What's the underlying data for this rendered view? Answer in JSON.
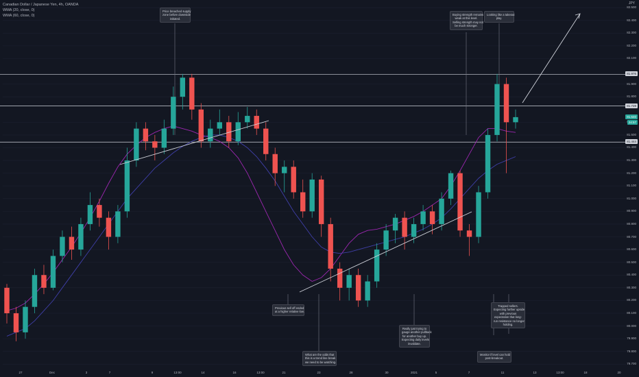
{
  "header": {
    "title": "Canadian Dollar / Japanese Yen, 4h, OANDA",
    "indicators": [
      "WMA (20, close, 0)",
      "WMA (60, close, 0)"
    ],
    "currency": "JPY"
  },
  "colors": {
    "background": "#131722",
    "up": "#26a69a",
    "down": "#ef5350",
    "wma20": "#9c27b0",
    "wma60": "#3f3fa8",
    "line": "#d1d4dc",
    "price_tag": "#26a69a"
  },
  "price_tags": [
    {
      "label": "81.976",
      "value": 81.976,
      "kind": "line"
    },
    {
      "label": "81.728",
      "value": 81.728,
      "kind": "line"
    },
    {
      "label": "81.640",
      "value": 81.64,
      "kind": "price"
    },
    {
      "label": "24:57",
      "value": 81.597,
      "kind": "countdown"
    },
    {
      "label": "81.444",
      "value": 81.444,
      "kind": "line"
    }
  ],
  "annotations": [
    {
      "id": "supply",
      "lines": [
        "Price breached supply",
        "zone before downside",
        "initiated."
      ]
    },
    {
      "id": "buying",
      "lines": [
        "Buying strength remains",
        "weak at this level.",
        "Selling strength may not",
        "be much stronger."
      ]
    },
    {
      "id": "takeout",
      "lines": [
        "Looking like a takeout",
        "play."
      ]
    },
    {
      "id": "sell-off",
      "lines": [
        "Previous sell off ended",
        "at a higher relative low."
      ]
    },
    {
      "id": "trapped",
      "lines": [
        "Trapped sellers.",
        "Expecting further upside",
        "with previous",
        "expectation that long-",
        "run resistance no longer",
        "holding."
      ]
    },
    {
      "id": "pullback",
      "lines": [
        "Really just trying to",
        "gauge another pullback",
        "for another buy up.",
        "Expecting daily levels",
        "invalidate."
      ]
    },
    {
      "id": "odds",
      "lines": [
        "What are the odds that",
        "this is a trend line break",
        "we need to be watching."
      ]
    },
    {
      "id": "monitor",
      "lines": [
        "Monitor if level can hold",
        "post-breakout."
      ]
    }
  ],
  "chart_data": {
    "type": "candlestick",
    "title": "Canadian Dollar / Japanese Yen, 4h, OANDA",
    "ylim": [
      79.68,
      82.56
    ],
    "y_ticks": [
      "82.500",
      "82.400",
      "82.300",
      "82.200",
      "82.100",
      "81.900",
      "81.800",
      "81.600",
      "81.500",
      "81.400",
      "81.300",
      "81.200",
      "81.100",
      "81.000",
      "80.900",
      "80.800",
      "80.700",
      "80.600",
      "80.500",
      "80.400",
      "80.300",
      "80.200",
      "80.100",
      "80.000",
      "79.900",
      "79.800",
      "79.700"
    ],
    "x_ticks": [
      "27",
      "Dec",
      "3",
      "7",
      "9",
      "13:00",
      "14",
      "16",
      "13:00",
      "21",
      "23",
      "28",
      "30",
      "2021",
      "5",
      "7",
      "11",
      "13",
      "13:00",
      "18",
      "20"
    ],
    "horizontal_levels": [
      81.976,
      81.728,
      81.444
    ],
    "series": [
      {
        "name": "WMA (20, close, 0)",
        "values": [
          80.12,
          80.14,
          80.18,
          80.25,
          80.33,
          80.42,
          80.52,
          80.62,
          80.73,
          80.85,
          80.98,
          81.12,
          81.25,
          81.35,
          81.42,
          81.48,
          81.52,
          81.55,
          81.57,
          81.55,
          81.53,
          81.5,
          81.48,
          81.45,
          81.4,
          81.32,
          81.2,
          81.05,
          80.9,
          80.75,
          80.6,
          80.48,
          80.4,
          80.35,
          80.38,
          80.45,
          80.55,
          80.65,
          80.72,
          80.75,
          80.76,
          80.78,
          80.8,
          80.83,
          80.86,
          80.9,
          80.95,
          81.0,
          81.1,
          81.22,
          81.35,
          81.48,
          81.55,
          81.55,
          81.53,
          81.52
        ]
      },
      {
        "name": "WMA (60, close, 0)",
        "values": [
          79.92,
          79.95,
          79.98,
          80.04,
          80.12,
          80.2,
          80.3,
          80.4,
          80.5,
          80.6,
          80.7,
          80.8,
          80.9,
          81.0,
          81.08,
          81.16,
          81.24,
          81.3,
          81.36,
          81.41,
          81.45,
          81.48,
          81.5,
          81.5,
          81.48,
          81.45,
          81.4,
          81.33,
          81.24,
          81.14,
          81.02,
          80.9,
          80.8,
          80.7,
          80.62,
          80.58,
          80.57,
          80.58,
          80.6,
          80.62,
          80.64,
          80.66,
          80.68,
          80.7,
          80.73,
          80.76,
          80.8,
          80.85,
          80.92,
          81.0,
          81.08,
          81.16,
          81.22,
          81.27,
          81.3,
          81.33
        ]
      }
    ],
    "candles": [
      [
        80.3,
        80.1,
        80.33,
        80.02
      ],
      [
        80.1,
        79.95,
        80.15,
        79.88
      ],
      [
        79.95,
        80.15,
        80.2,
        79.9
      ],
      [
        80.15,
        80.4,
        80.45,
        80.1
      ],
      [
        80.4,
        80.3,
        80.48,
        80.25
      ],
      [
        80.3,
        80.55,
        80.6,
        80.28
      ],
      [
        80.55,
        80.7,
        80.75,
        80.5
      ],
      [
        80.7,
        80.6,
        80.78,
        80.52
      ],
      [
        80.6,
        80.8,
        80.85,
        80.55
      ],
      [
        80.8,
        80.95,
        81.05,
        80.75
      ],
      [
        80.95,
        80.85,
        81.0,
        80.78
      ],
      [
        80.85,
        80.7,
        80.9,
        80.6
      ],
      [
        80.7,
        80.9,
        80.95,
        80.65
      ],
      [
        80.9,
        81.3,
        81.4,
        80.85
      ],
      [
        81.3,
        81.55,
        81.6,
        81.25
      ],
      [
        81.55,
        81.45,
        81.6,
        81.38
      ],
      [
        81.45,
        81.4,
        81.5,
        81.3
      ],
      [
        81.4,
        81.55,
        81.62,
        81.35
      ],
      [
        81.55,
        81.8,
        81.88,
        81.5
      ],
      [
        81.8,
        81.95,
        81.98,
        81.7
      ],
      [
        81.95,
        81.7,
        81.98,
        81.62
      ],
      [
        81.7,
        81.45,
        81.75,
        81.4
      ],
      [
        81.45,
        81.55,
        81.62,
        81.4
      ],
      [
        81.55,
        81.6,
        81.7,
        81.5
      ],
      [
        81.6,
        81.45,
        81.65,
        81.4
      ],
      [
        81.45,
        81.6,
        81.68,
        81.42
      ],
      [
        81.6,
        81.65,
        81.72,
        81.55
      ],
      [
        81.65,
        81.55,
        81.7,
        81.5
      ],
      [
        81.55,
        81.35,
        81.6,
        81.3
      ],
      [
        81.35,
        81.2,
        81.4,
        81.1
      ],
      [
        81.2,
        81.25,
        81.3,
        81.05
      ],
      [
        81.25,
        81.05,
        81.3,
        81.0
      ],
      [
        81.05,
        80.9,
        81.15,
        80.85
      ],
      [
        80.9,
        81.15,
        81.2,
        80.85
      ],
      [
        81.15,
        80.8,
        81.18,
        80.7
      ],
      [
        80.8,
        80.45,
        80.85,
        80.35
      ],
      [
        80.45,
        80.3,
        80.5,
        80.2
      ],
      [
        80.3,
        80.4,
        80.45,
        80.2
      ],
      [
        80.4,
        80.2,
        80.45,
        80.15
      ],
      [
        80.2,
        80.35,
        80.4,
        80.15
      ],
      [
        80.35,
        80.6,
        80.65,
        80.3
      ],
      [
        80.6,
        80.75,
        80.8,
        80.55
      ],
      [
        80.75,
        80.85,
        80.88,
        80.65
      ],
      [
        80.85,
        80.7,
        80.9,
        80.6
      ],
      [
        80.7,
        80.8,
        80.85,
        80.65
      ],
      [
        80.8,
        80.9,
        80.95,
        80.75
      ],
      [
        80.9,
        80.8,
        80.95,
        80.72
      ],
      [
        80.8,
        81.0,
        81.05,
        80.75
      ],
      [
        81.0,
        81.2,
        81.22,
        80.95
      ],
      [
        81.2,
        80.75,
        81.22,
        80.7
      ],
      [
        80.75,
        80.7,
        80.8,
        80.55
      ],
      [
        80.7,
        81.05,
        81.1,
        80.65
      ],
      [
        81.05,
        81.5,
        81.55,
        81.0
      ],
      [
        81.5,
        81.9,
        81.98,
        81.45
      ],
      [
        81.9,
        81.6,
        81.95,
        81.2
      ],
      [
        81.6,
        81.64,
        81.7,
        81.55
      ]
    ]
  }
}
